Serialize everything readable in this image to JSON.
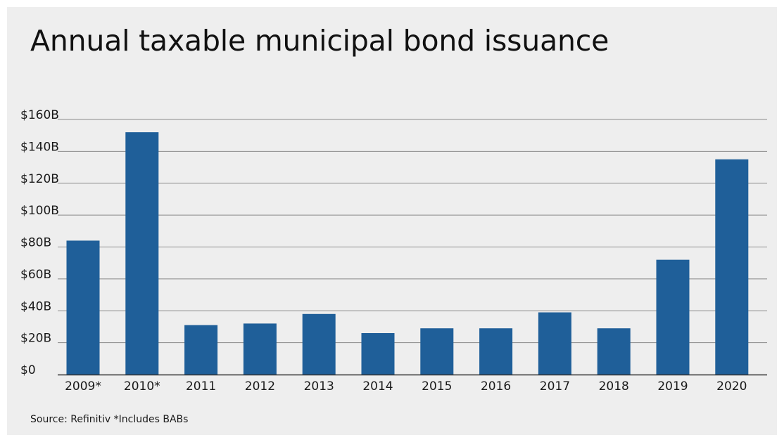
{
  "title": "Annual taxable municipal bond issuance",
  "source_note": "Source: Refinitiv *Includes BABs",
  "colors": {
    "bar": "#1f5f99",
    "background": "#eeeeee",
    "grid": "#8a8a8a",
    "axis": "#333333"
  },
  "chart_data": {
    "type": "bar",
    "categories": [
      "2009*",
      "2010*",
      "2011",
      "2012",
      "2013",
      "2014",
      "2015",
      "2016",
      "2017",
      "2018",
      "2019",
      "2020"
    ],
    "values": [
      84,
      152,
      31,
      32,
      38,
      26,
      29,
      29,
      39,
      29,
      72,
      135
    ],
    "ylim": [
      0,
      160
    ],
    "yticks": [
      0,
      20,
      40,
      60,
      80,
      100,
      120,
      140,
      160
    ],
    "ytick_labels": [
      "$0",
      "$20B",
      "$40B",
      "$60B",
      "$80B",
      "$100B",
      "$120B",
      "$140B",
      "$160B"
    ],
    "xlabel": "",
    "ylabel": "",
    "grid": true
  }
}
